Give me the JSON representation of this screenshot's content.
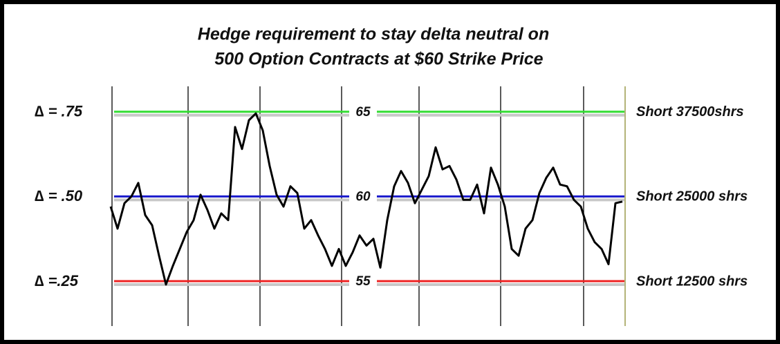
{
  "chart_data": {
    "type": "line",
    "title": [
      "Hedge requirement to stay delta neutral on",
      "500 Option Contracts at $60 Strike Price"
    ],
    "color": "#000000",
    "values": [
      59.4,
      58.1,
      59.6,
      60.0,
      60.8,
      58.9,
      58.3,
      56.5,
      54.8,
      55.9,
      56.9,
      57.9,
      58.6,
      60.1,
      59.2,
      58.1,
      59.0,
      58.6,
      64.1,
      62.8,
      64.5,
      64.9,
      63.9,
      61.8,
      60.1,
      59.4,
      60.6,
      60.2,
      58.1,
      58.6,
      57.7,
      56.9,
      55.9,
      56.9,
      55.9,
      56.7,
      57.7,
      57.1,
      57.5,
      55.8,
      58.6,
      60.6,
      61.5,
      60.8,
      59.6,
      60.4,
      61.2,
      62.9,
      61.6,
      61.8,
      61.0,
      59.8,
      59.8,
      60.7,
      59.0,
      61.7,
      60.7,
      59.4,
      56.9,
      56.5,
      58.1,
      58.6,
      60.2,
      61.1,
      61.7,
      60.7,
      60.6,
      59.8,
      59.4,
      58.1,
      57.3,
      56.9,
      56.0,
      59.6,
      59.7
    ],
    "ylim": [
      52.35,
      66.5
    ],
    "yticks": [
      55,
      60,
      65
    ],
    "tick_colors": [
      "#ee2222",
      "#1a1acc",
      "#33dd33"
    ],
    "left_labels": [
      "∆ =.25",
      "∆ = .50",
      "∆ = .75"
    ],
    "right_labels": [
      "Short 12500 shrs",
      "Short 25000 shrs",
      "Short 37500shrs"
    ]
  }
}
